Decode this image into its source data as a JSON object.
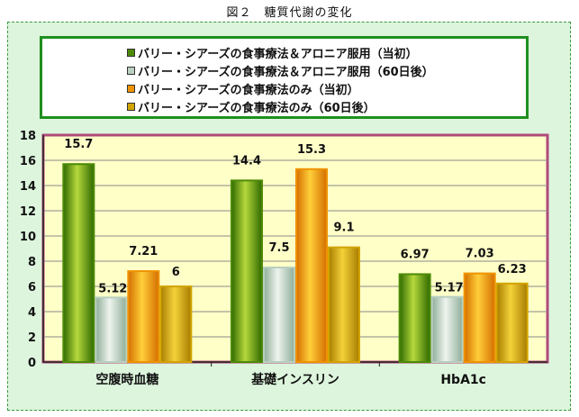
{
  "figure_title": "図２　糖質代謝の変化",
  "colors": {
    "frame_bg": "#ddf5dd",
    "frame_border": "#3c9a3c",
    "plot_bg": "#ffffc8",
    "plot_border": "#b04a7a",
    "grid": "#8a8a8a"
  },
  "chart_data": {
    "type": "bar",
    "title": "",
    "xlabel": "",
    "ylabel": "",
    "ylim": [
      0,
      18
    ],
    "yticks": [
      0,
      2,
      4,
      6,
      8,
      10,
      12,
      14,
      16,
      18
    ],
    "grid": true,
    "legend_position": "top",
    "categories": [
      "空腹時血糖",
      "基礎インスリン",
      "HbA1c"
    ],
    "series": [
      {
        "name": "バリー・シアーズの食事療法＆アロニア服用（当初）",
        "values": [
          15.7,
          14.4,
          6.97
        ],
        "labels": [
          "15.7",
          "14.4",
          "6.97"
        ],
        "color": "#4c8a06"
      },
      {
        "name": "バリー・シアーズの食事療法＆アロニア服用（60日後）",
        "values": [
          5.12,
          7.5,
          5.17
        ],
        "labels": [
          "5.12",
          "7.5",
          "5.17"
        ],
        "color": "#b9cfc0"
      },
      {
        "name": "バリー・シアーズの食事療法のみ（当初）",
        "values": [
          7.21,
          15.3,
          7.03
        ],
        "labels": [
          "7.21",
          "15.3",
          "7.03"
        ],
        "color": "#ef9300"
      },
      {
        "name": "バリー・シアーズの食事療法のみ（60日後）",
        "values": [
          6,
          9.1,
          6.23
        ],
        "labels": [
          "6",
          "9.1",
          "6.23"
        ],
        "color": "#d3a400"
      }
    ]
  }
}
